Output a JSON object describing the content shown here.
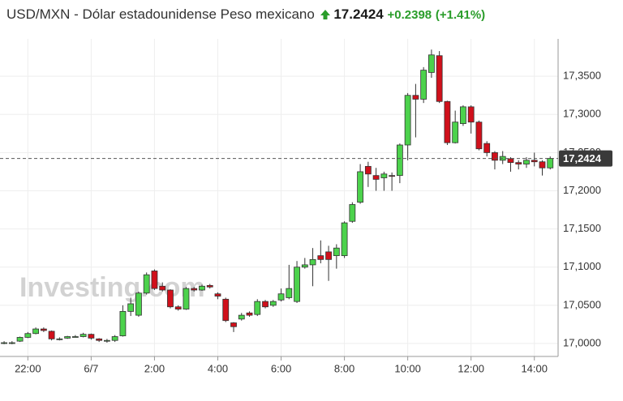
{
  "header": {
    "symbol": "USD/MXN - Dólar estadounidense Peso mexicano",
    "price": "17.2424",
    "change": "+0.2398",
    "change_pct": "(+1.41%)"
  },
  "chart_data": {
    "type": "candlestick",
    "watermark": "Investing.com",
    "up_color": "#4cd24c",
    "down_color": "#d0101b",
    "grid": true,
    "x": [
      -2.75,
      -2.5,
      -2.25,
      -2,
      -1.75,
      -1.5,
      -1.25,
      -1,
      -0.75,
      -0.5,
      -0.25,
      0,
      0.25,
      0.5,
      0.75,
      1,
      1.25,
      1.5,
      1.75,
      2,
      2.25,
      2.5,
      2.75,
      3,
      3.25,
      3.5,
      3.75,
      4,
      4.25,
      4.5,
      4.75,
      5,
      5.25,
      5.5,
      5.75,
      6,
      6.25,
      6.5,
      6.75,
      7,
      7.25,
      7.5,
      7.75,
      8,
      8.25,
      8.5,
      8.75,
      9,
      9.25,
      9.5,
      9.75,
      10,
      10.25,
      10.5,
      10.75,
      11,
      11.25,
      11.5,
      11.75,
      12,
      12.25,
      12.5,
      12.75,
      13,
      13.25,
      13.5,
      13.75,
      14,
      14.25,
      14.5
    ],
    "open": [
      17.001,
      17.001,
      17.003,
      17.008,
      17.013,
      17.019,
      17.016,
      17.006,
      17.007,
      17.009,
      17.009,
      17.012,
      17.006,
      17.003,
      17.004,
      17.01,
      17.042,
      17.037,
      17.066,
      17.095,
      17.075,
      17.07,
      17.048,
      17.045,
      17.072,
      17.07,
      17.076,
      17.065,
      17.058,
      17.027,
      17.032,
      17.04,
      17.038,
      17.055,
      17.05,
      17.057,
      17.06,
      17.055,
      17.1,
      17.103,
      17.115,
      17.12,
      17.115,
      17.115,
      17.16,
      17.185,
      17.232,
      17.22,
      17.217,
      17.22,
      17.22,
      17.26,
      17.325,
      17.32,
      17.355,
      17.377,
      17.317,
      17.263,
      17.288,
      17.31,
      17.29,
      17.262,
      17.25,
      17.24,
      17.242,
      17.237,
      17.235,
      17.24,
      17.238,
      17.23
    ],
    "high": [
      17.003,
      17.003,
      17.009,
      17.015,
      17.021,
      17.021,
      17.017,
      17.008,
      17.01,
      17.011,
      17.014,
      17.013,
      17.007,
      17.006,
      17.011,
      17.05,
      17.06,
      17.068,
      17.093,
      17.097,
      17.08,
      17.071,
      17.05,
      17.074,
      17.074,
      17.077,
      17.078,
      17.067,
      17.06,
      17.028,
      17.04,
      17.042,
      17.058,
      17.057,
      17.057,
      17.072,
      17.103,
      17.108,
      17.112,
      17.125,
      17.135,
      17.128,
      17.13,
      17.16,
      17.185,
      17.235,
      17.238,
      17.23,
      17.225,
      17.224,
      17.262,
      17.328,
      17.34,
      17.362,
      17.385,
      17.383,
      17.318,
      17.305,
      17.312,
      17.312,
      17.292,
      17.265,
      17.252,
      17.252,
      17.244,
      17.24,
      17.244,
      17.25,
      17.24,
      17.245
    ],
    "low": [
      16.999,
      16.999,
      17.002,
      17.007,
      17.012,
      17.015,
      17.004,
      17.004,
      17.006,
      17.008,
      17.008,
      17.005,
      17.002,
      17.001,
      17.002,
      17.009,
      17.036,
      17.035,
      17.064,
      17.07,
      17.068,
      17.046,
      17.043,
      17.044,
      17.068,
      17.069,
      17.072,
      17.058,
      17.028,
      17.015,
      17.03,
      17.035,
      17.036,
      17.046,
      17.048,
      17.055,
      17.058,
      17.053,
      17.098,
      17.075,
      17.105,
      17.082,
      17.098,
      17.112,
      17.158,
      17.183,
      17.205,
      17.2,
      17.2,
      17.2,
      17.21,
      17.24,
      17.27,
      17.315,
      17.348,
      17.315,
      17.26,
      17.262,
      17.285,
      17.275,
      17.253,
      17.245,
      17.228,
      17.235,
      17.225,
      17.228,
      17.23,
      17.232,
      17.22,
      17.228
    ],
    "close": [
      17.001,
      17.001,
      17.008,
      17.013,
      17.019,
      17.017,
      17.006,
      17.006,
      17.009,
      17.009,
      17.012,
      17.007,
      17.004,
      17.004,
      17.009,
      17.042,
      17.052,
      17.066,
      17.09,
      17.072,
      17.07,
      17.048,
      17.045,
      17.072,
      17.07,
      17.075,
      17.074,
      17.062,
      17.03,
      17.022,
      17.037,
      17.037,
      17.055,
      17.048,
      17.055,
      17.065,
      17.072,
      17.1,
      17.103,
      17.11,
      17.11,
      17.11,
      17.125,
      17.158,
      17.182,
      17.225,
      17.222,
      17.215,
      17.222,
      17.219,
      17.26,
      17.325,
      17.32,
      17.358,
      17.378,
      17.317,
      17.263,
      17.29,
      17.31,
      17.29,
      17.255,
      17.25,
      17.24,
      17.245,
      17.237,
      17.235,
      17.24,
      17.238,
      17.23,
      17.2424
    ],
    "last_price": {
      "value": 17.2424,
      "label": "17,2424"
    },
    "xlim": [
      -2.88,
      14.75
    ],
    "ylim": [
      16.983,
      17.399
    ],
    "xticks": [
      {
        "value": -2,
        "label": "22:00"
      },
      {
        "value": 0,
        "label": "6/7"
      },
      {
        "value": 2,
        "label": "2:00"
      },
      {
        "value": 4,
        "label": "4:00"
      },
      {
        "value": 6,
        "label": "6:00"
      },
      {
        "value": 8,
        "label": "8:00"
      },
      {
        "value": 10,
        "label": "10:00"
      },
      {
        "value": 12,
        "label": "12:00"
      },
      {
        "value": 14,
        "label": "14:00"
      }
    ],
    "yticks": [
      {
        "value": 17,
        "label": "17,0000"
      },
      {
        "value": 17.05,
        "label": "17,0500"
      },
      {
        "value": 17.1,
        "label": "17,1000"
      },
      {
        "value": 17.15,
        "label": "17,1500"
      },
      {
        "value": 17.2,
        "label": "17,2000"
      },
      {
        "value": 17.25,
        "label": "17,2500"
      },
      {
        "value": 17.3,
        "label": "17,3000"
      },
      {
        "value": 17.35,
        "label": "17,3500"
      }
    ]
  }
}
